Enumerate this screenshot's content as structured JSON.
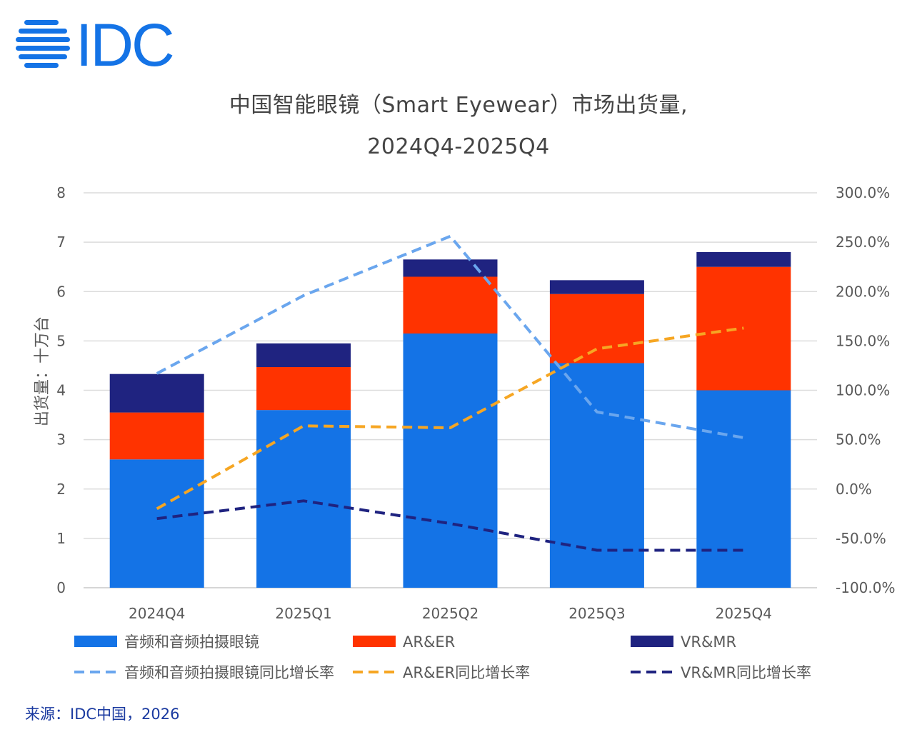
{
  "logo": {
    "text": "IDC",
    "color": "#1473e6"
  },
  "title": {
    "line1": "中国智能眼镜（Smart Eyewear）市场出货量,",
    "line2": "2024Q4-2025Q4"
  },
  "source": "来源：IDC中国，2026",
  "colors": {
    "audio": "#1473e6",
    "arer": "#ff3300",
    "vrmr": "#1f2380",
    "audio_growth": "#6aa6ee",
    "arer_growth": "#f6a623",
    "vrmr_growth": "#1f2380"
  },
  "chart_data": {
    "type": "bar",
    "stacked": true,
    "categories": [
      "2024Q4",
      "2025Q1",
      "2025Q2",
      "2025Q3",
      "2025Q4"
    ],
    "ylabel": "出货量：十万台",
    "ylim": [
      0,
      8
    ],
    "yticks": [
      "0",
      "1",
      "2",
      "3",
      "4",
      "5",
      "6",
      "7",
      "8"
    ],
    "y2lim": [
      -100,
      300
    ],
    "y2ticks": [
      "-100.0%",
      "-50.0%",
      "0.0%",
      "50.0%",
      "100.0%",
      "150.0%",
      "200.0%",
      "250.0%",
      "300.0%"
    ],
    "grid": true,
    "legend_position": "bottom",
    "series": [
      {
        "name": "音频和音频拍摄眼镜",
        "type": "bar",
        "axis": "left",
        "color": "#1473e6",
        "values": [
          2.6,
          3.6,
          5.15,
          4.55,
          4.0
        ]
      },
      {
        "name": "AR&ER",
        "type": "bar",
        "axis": "left",
        "color": "#ff3300",
        "values": [
          0.95,
          0.87,
          1.15,
          1.4,
          2.5
        ]
      },
      {
        "name": "VR&MR",
        "type": "bar",
        "axis": "left",
        "color": "#1f2380",
        "values": [
          0.78,
          0.48,
          0.35,
          0.28,
          0.3
        ]
      },
      {
        "name": "音频和音频拍摄眼镜同比增长率",
        "type": "line",
        "axis": "right",
        "dash": true,
        "color": "#6aa6ee",
        "values": [
          117,
          196,
          256,
          78,
          52
        ]
      },
      {
        "name": "AR&ER同比增长率",
        "type": "line",
        "axis": "right",
        "dash": true,
        "color": "#f6a623",
        "values": [
          -20,
          64,
          62,
          142,
          163
        ]
      },
      {
        "name": "VR&MR同比增长率",
        "type": "line",
        "axis": "right",
        "dash": true,
        "color": "#1f2380",
        "values": [
          -30,
          -12,
          -35,
          -62,
          -62
        ]
      }
    ]
  }
}
